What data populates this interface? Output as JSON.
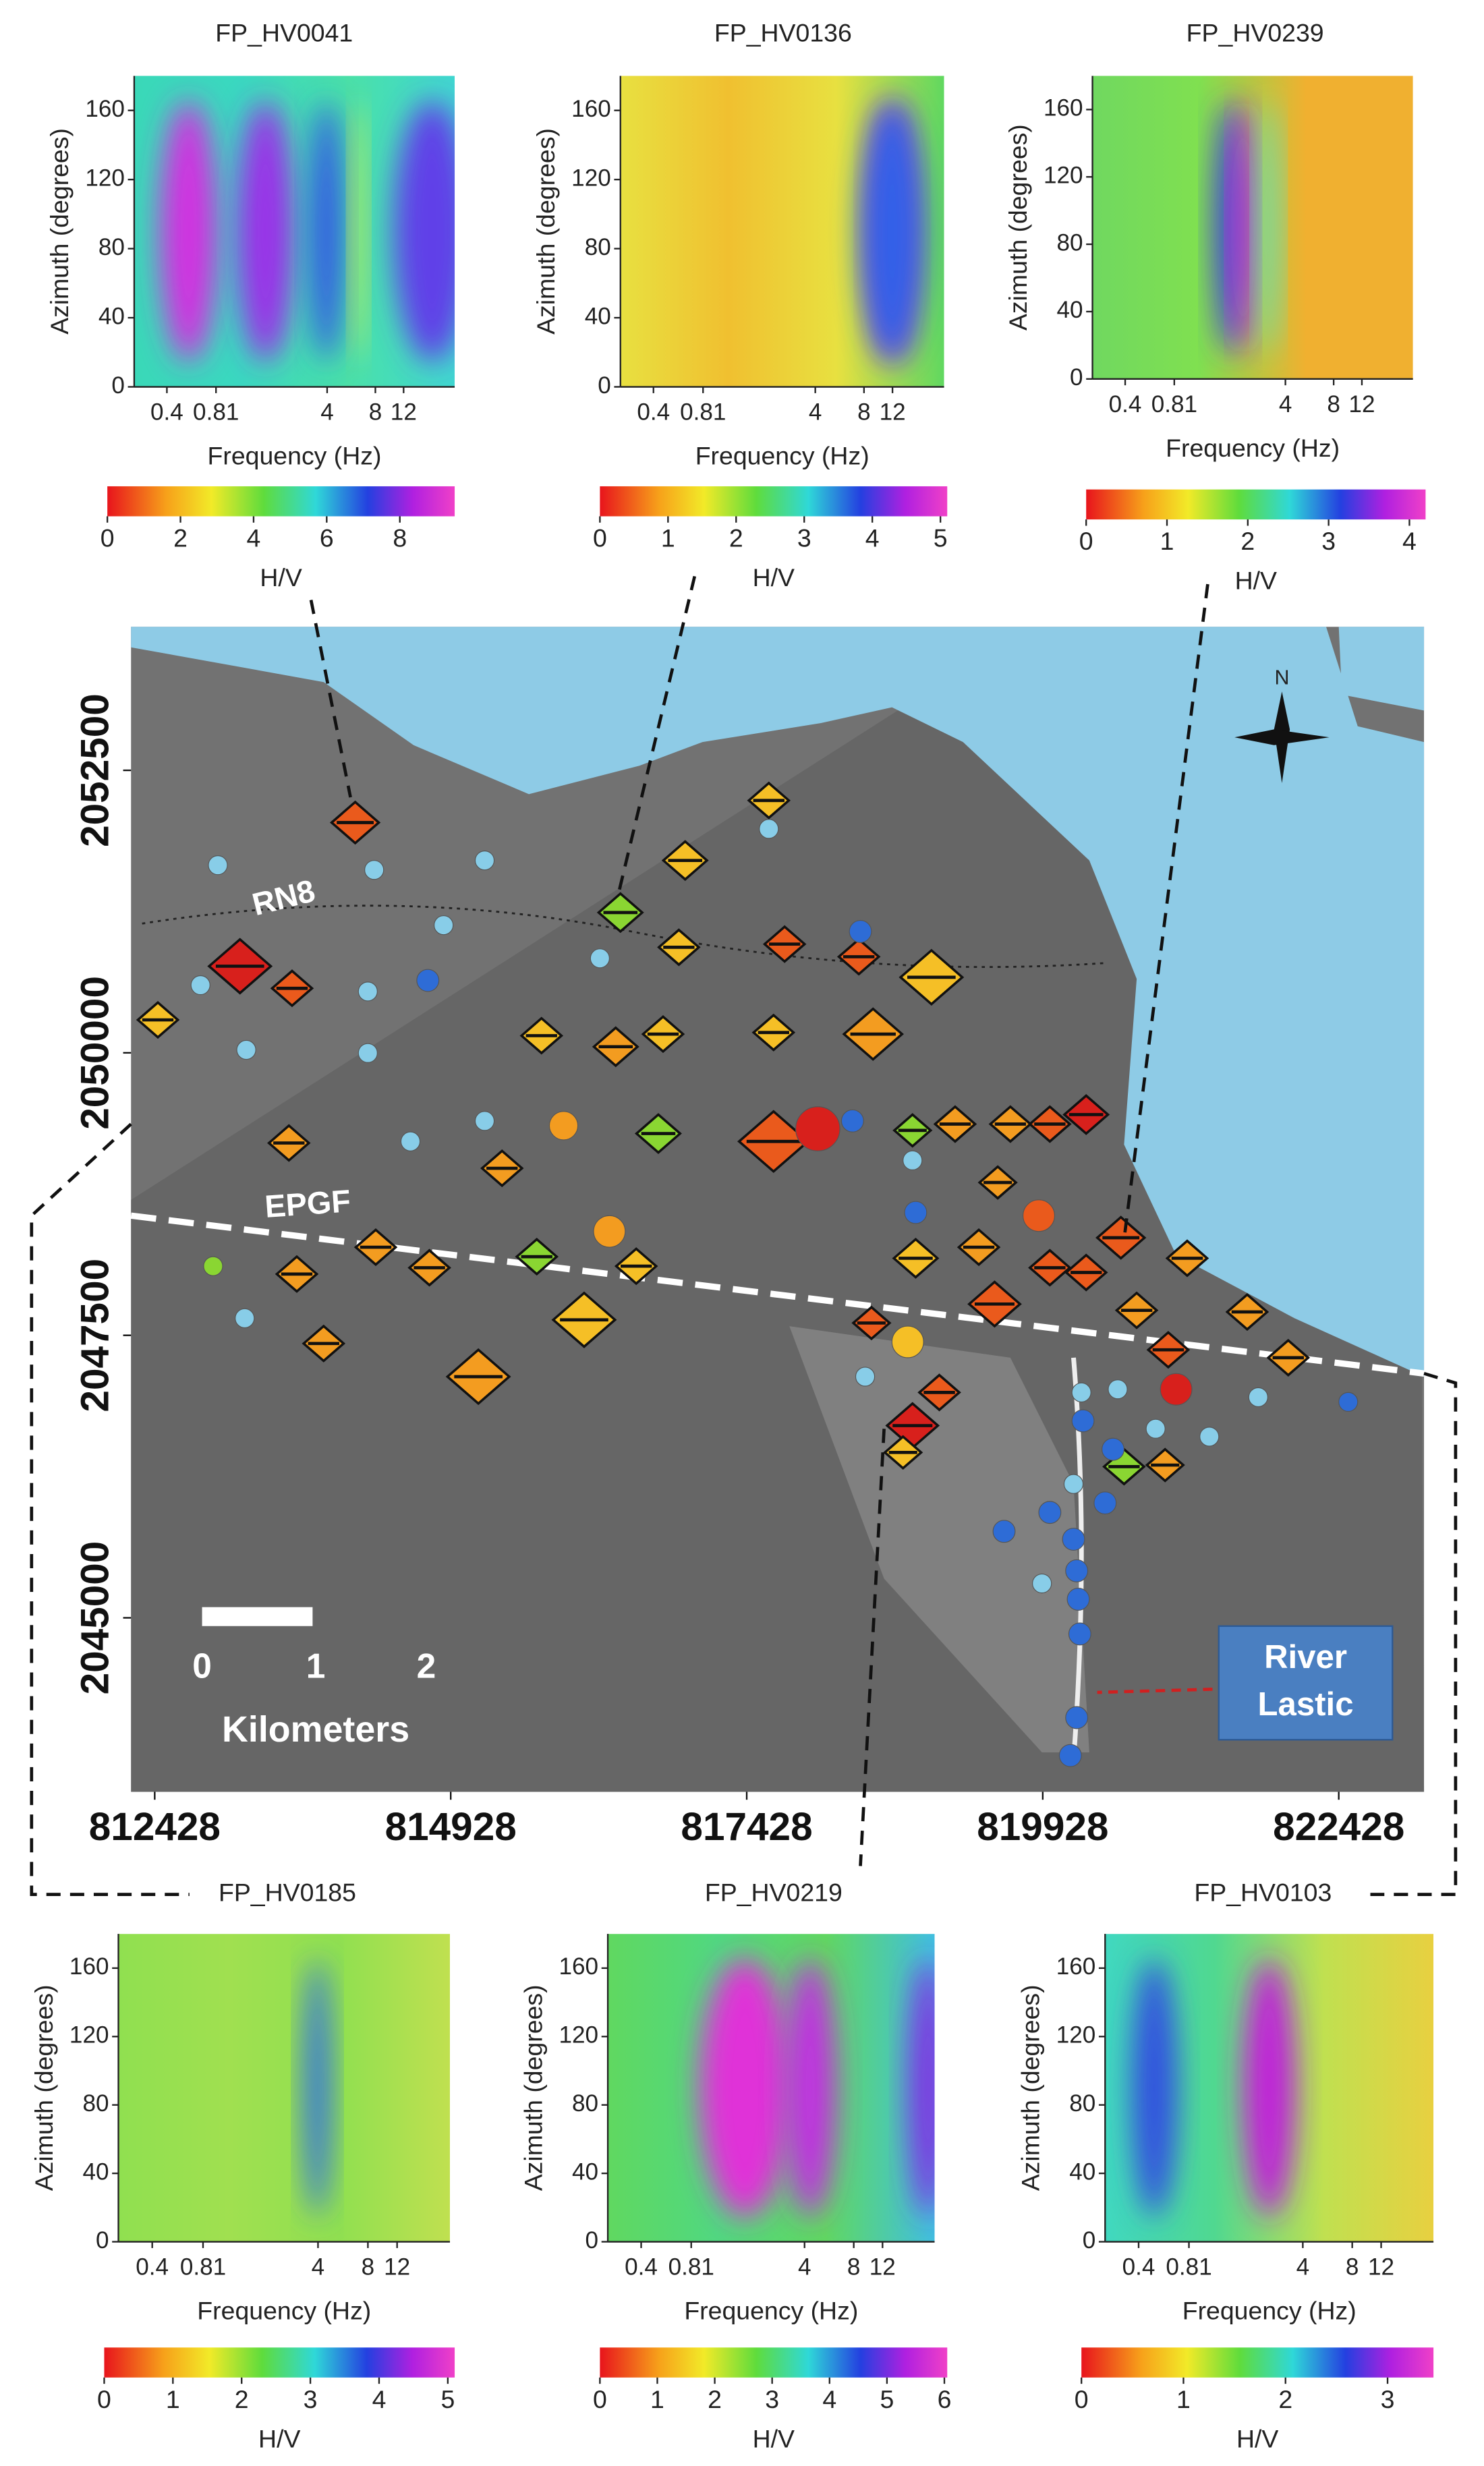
{
  "panels": [
    {
      "title": "FP_HV0041",
      "ylabel": "Azimuth (degrees)",
      "xlabel": "Frequency (Hz)",
      "xscale": "log",
      "xlim": [
        0.25,
        25
      ],
      "xticks": [
        0.4,
        0.81,
        4,
        8,
        12
      ],
      "ylim": [
        0,
        180
      ],
      "yticks": [
        0,
        40,
        80,
        120,
        160
      ],
      "colorbar": {
        "label": "H/V",
        "lim": [
          0,
          9.5
        ],
        "ticks": [
          0,
          2,
          4,
          6,
          8
        ]
      }
    },
    {
      "title": "FP_HV0136",
      "ylabel": "Azimuth (degrees)",
      "xlabel": "Frequency (Hz)",
      "xscale": "log",
      "xlim": [
        0.25,
        25
      ],
      "xticks": [
        0.4,
        0.81,
        4,
        8,
        12
      ],
      "ylim": [
        0,
        180
      ],
      "yticks": [
        0,
        40,
        80,
        120,
        160
      ],
      "colorbar": {
        "label": "H/V",
        "lim": [
          0,
          5.1
        ],
        "ticks": [
          0,
          1,
          2,
          3,
          4,
          5
        ]
      }
    },
    {
      "title": "FP_HV0239",
      "ylabel": "Azimuth (degrees)",
      "xlabel": "Frequency (Hz)",
      "xscale": "log",
      "xlim": [
        0.25,
        25
      ],
      "xticks": [
        0.4,
        0.81,
        4,
        8,
        12
      ],
      "ylim": [
        0,
        180
      ],
      "yticks": [
        0,
        40,
        80,
        120,
        160
      ],
      "colorbar": {
        "label": "H/V",
        "lim": [
          0,
          4.2
        ],
        "ticks": [
          0,
          1,
          2,
          3,
          4
        ]
      }
    },
    {
      "title": "FP_HV0185",
      "ylabel": "Azimuth (degrees)",
      "xlabel": "Frequency (Hz)",
      "xscale": "log",
      "xlim": [
        0.25,
        25
      ],
      "xticks": [
        0.4,
        0.81,
        4,
        8,
        12
      ],
      "ylim": [
        0,
        180
      ],
      "yticks": [
        0,
        40,
        80,
        120,
        160
      ],
      "colorbar": {
        "label": "H/V",
        "lim": [
          0,
          5.1
        ],
        "ticks": [
          0,
          1,
          2,
          3,
          4,
          5
        ]
      }
    },
    {
      "title": "FP_HV0219",
      "ylabel": "Azimuth (degrees)",
      "xlabel": "Frequency (Hz)",
      "xscale": "log",
      "xlim": [
        0.25,
        25
      ],
      "xticks": [
        0.4,
        0.81,
        4,
        8,
        12
      ],
      "ylim": [
        0,
        180
      ],
      "yticks": [
        0,
        40,
        80,
        120,
        160
      ],
      "colorbar": {
        "label": "H/V",
        "lim": [
          0,
          6.05
        ],
        "ticks": [
          0,
          1,
          2,
          3,
          4,
          5,
          6
        ]
      }
    },
    {
      "title": "FP_HV0103",
      "ylabel": "Azimuth (degrees)",
      "xlabel": "Frequency (Hz)",
      "xscale": "log",
      "xlim": [
        0.25,
        25
      ],
      "xticks": [
        0.4,
        0.81,
        4,
        8,
        12
      ],
      "ylim": [
        0,
        180
      ],
      "yticks": [
        0,
        40,
        80,
        120,
        160
      ],
      "colorbar": {
        "label": "H/V",
        "lim": [
          0,
          3.45
        ],
        "ticks": [
          0,
          1,
          2,
          3
        ]
      }
    }
  ],
  "map": {
    "xlim": [
      812228,
      823148
    ],
    "xticks": [
      812428,
      814928,
      817428,
      819928,
      822428
    ],
    "ylim": [
      2043460,
      2053770
    ],
    "yticks": [
      2045000,
      2047500,
      2050000,
      2052500
    ],
    "road_label": "RN8",
    "fault_label": "EPGF",
    "north_label": "N",
    "scale_labels": [
      "0",
      "1",
      "2"
    ],
    "scale_unit": "Kilometers",
    "river_label": [
      "River",
      "Lastic"
    ]
  }
}
